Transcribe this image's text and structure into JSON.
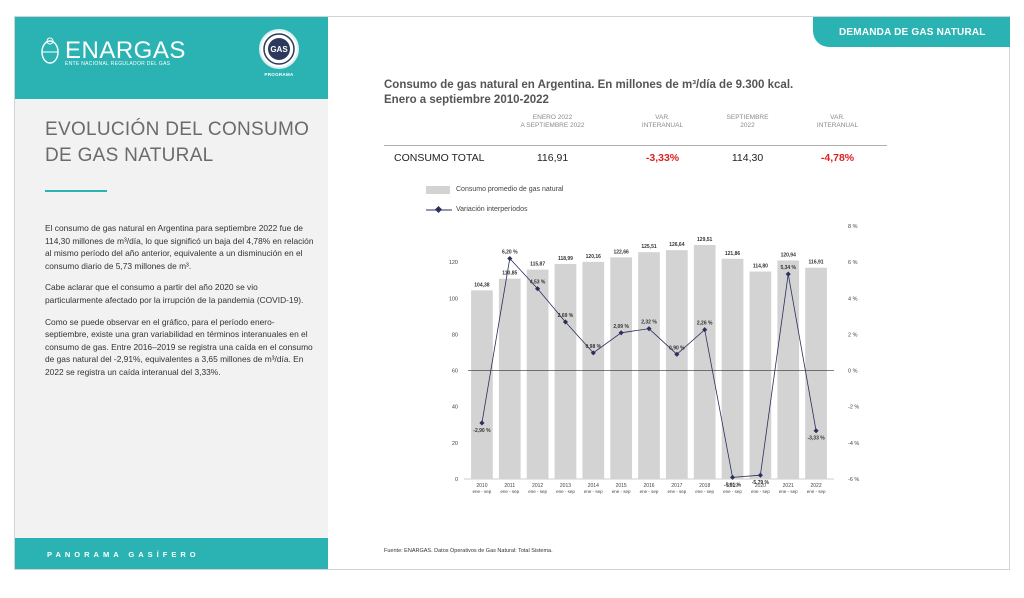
{
  "header": {
    "tab_label": "DEMANDA DE GAS NATURAL"
  },
  "brand": {
    "logo_text": "ENARGAS",
    "logo_sub": "ENTE NACIONAL REGULADOR DEL GAS",
    "badge_label": "PROGRAMA",
    "footer": "PANORAMA GASÍFERO"
  },
  "left_panel": {
    "title": "EVOLUCIÓN DEL CONSUMO DE GAS NATURAL",
    "p1": "El consumo de gas natural en Argentina para septiembre 2022 fue  de 114,30 millones de m³/día, lo que significó un baja del 4,78% en relación al mismo período del año anterior, equivalente a un disminución en el consumo diario de 5,73 millones de m³.",
    "p2": "Cabe aclarar que el consumo a partir del año 2020 se vio particularmente afectado por la irrupción de la pandemia (COVID-19).",
    "p3": "Como se puede observar en el gráfico, para el período enero-septiembre, existe una gran variabilidad en términos interanuales en el consumo de gas. Entre 2016–2019 se registra una caída en el consumo de gas natural del -2,91%, equivalentes a 3,65 millones de m³/día. En 2022 se registra un caída interanual  del 3,33%."
  },
  "chart_title": {
    "line1": "Consumo de gas natural en Argentina. En millones de m³/día de 9.300 kcal.",
    "line2": "Enero a septiembre 2010-2022"
  },
  "kpi": {
    "col1_head_1": "ENERO 2022",
    "col1_head_2": "A SEPTIEMBRE 2022",
    "col2_head_1": "VAR.",
    "col2_head_2": "INTERANUAL",
    "col3_head_1": "SEPTIEMBRE",
    "col3_head_2": "2022",
    "col4_head_1": "VAR.",
    "col4_head_2": "INTERANUAL",
    "row_label": "CONSUMO TOTAL",
    "v1": "116,91",
    "v2": "-3,33%",
    "v3": "114,30",
    "v4": "-4,78%"
  },
  "legend": {
    "bars": "Consumo promedio de gas natural",
    "line": "Variación interperíodos"
  },
  "source": "Fuente: ENARGAS. Datos Operativos de Gas Natural: Total Sistema.",
  "colors": {
    "accent": "#2bb3b3",
    "bar": "#d3d3d3",
    "line": "#2b2f5c",
    "negative": "#e02020"
  },
  "chart_data": {
    "type": "bar",
    "categories": [
      "2010",
      "2011",
      "2012",
      "2013",
      "2014",
      "2015",
      "2016",
      "2017",
      "2018",
      "2019",
      "2020",
      "2021",
      "2022"
    ],
    "category_sublabel": "ene - sep",
    "series": [
      {
        "name": "Consumo promedio de gas natural",
        "type": "bar",
        "axis": "left",
        "values": [
          104.38,
          110.85,
          115.87,
          118.99,
          120.16,
          122.66,
          125.51,
          126.64,
          129.51,
          121.86,
          114.8,
          120.94,
          116.91
        ],
        "labels": [
          "104,38",
          "110,85",
          "115,87",
          "118,99",
          "120,16",
          "122,66",
          "125,51",
          "126,64",
          "129,51",
          "121,86",
          "114,80",
          "120,94",
          "116,91"
        ]
      },
      {
        "name": "Variación interperíodos",
        "type": "line",
        "axis": "right",
        "values": [
          -2.9,
          6.2,
          4.53,
          2.69,
          0.98,
          2.09,
          2.32,
          0.9,
          2.26,
          -5.91,
          -5.79,
          5.34,
          -3.33
        ],
        "labels": [
          "-2,90 %",
          "6,20 %",
          "4,53 %",
          "2,69 %",
          "0,98 %",
          "2,09 %",
          "2,32 %",
          "0,90 %",
          "2,26 %",
          "-5,91 %",
          "-5,79 %",
          "5,34 %",
          "-3,33 %"
        ]
      }
    ],
    "y_left": {
      "ylim": [
        0,
        140
      ],
      "ticks": [
        0,
        20,
        40,
        60,
        80,
        100,
        120
      ],
      "tick_labels": [
        "0",
        "20",
        "40",
        "60",
        "80",
        "100",
        "120"
      ]
    },
    "y_right": {
      "ylim": [
        -6,
        8
      ],
      "ticks": [
        -6,
        -4,
        -2,
        0,
        2,
        4,
        6,
        8
      ],
      "tick_labels": [
        "-6 %",
        "-4 %",
        "-2 %",
        "0 %",
        "2 %",
        "4 %",
        "6 %",
        "8 %"
      ]
    },
    "grid": false,
    "legend_position": "top-left"
  }
}
